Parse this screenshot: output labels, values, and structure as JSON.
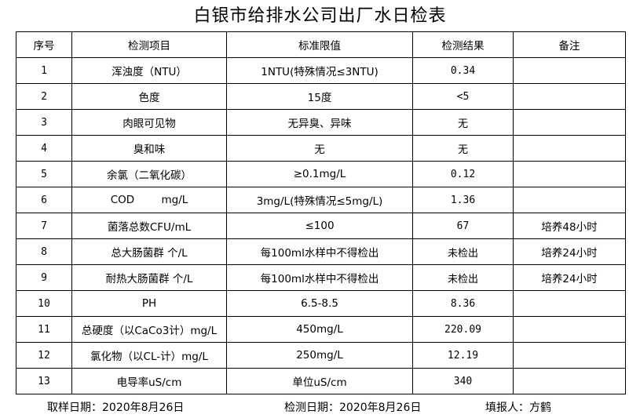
{
  "title": "白银市给排水公司出厂水日检表",
  "headers": [
    "序号",
    "检测项目",
    "标准限值",
    "检测结果",
    "备注"
  ],
  "rows": [
    [
      "1",
      "浑浊度（NTU）",
      "1NTU(特殊情况≤3NTU)",
      "0.34",
      ""
    ],
    [
      "2",
      "色度",
      "15度",
      "<5",
      ""
    ],
    [
      "3",
      "肉眼可见物",
      "无异臭、异味",
      "无",
      ""
    ],
    [
      "4",
      "臭和味",
      "无",
      "无",
      ""
    ],
    [
      "5",
      "余氯（二氧化碳）",
      "≥0.1mg/L",
      "0.12",
      ""
    ],
    [
      "6",
      "COD        mg/L",
      "3mg/L(特殊情况≤5mg/L)",
      "1.36",
      ""
    ],
    [
      "7",
      "菌落总数CFU/mL",
      "≤100",
      "67",
      "培养48小时"
    ],
    [
      "8",
      "总大肠菌群 个/L",
      "每100ml水样中不得检出",
      "未检出",
      "培养24小时"
    ],
    [
      "9",
      "耐热大肠菌群 个/L",
      "每100ml水样中不得检出",
      "未检出",
      "培养24小时"
    ],
    [
      "10",
      "PH",
      "6.5-8.5",
      "8.36",
      ""
    ],
    [
      "11",
      "总硬度（以CaCo3计）mg/L",
      "450mg/L",
      "220.09",
      ""
    ],
    [
      "12",
      "氯化物（以CL-计）mg/L",
      "250mg/L",
      "12.19",
      ""
    ],
    [
      "13",
      "电导率uS/cm",
      "单位uS/cm",
      "340",
      ""
    ]
  ],
  "footer": {
    "sample_date": "取样日期：2020年8月26日",
    "test_date": "检测日期：2020年8月26日",
    "reporter": "填报人：方鹤"
  }
}
